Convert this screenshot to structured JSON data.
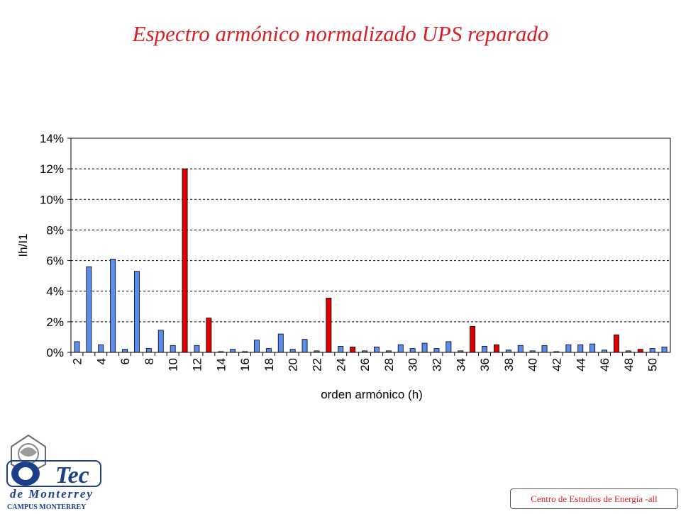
{
  "slide": {
    "title": "Espectro armónico normalizado UPS reparado",
    "footer": "Centro de Estudios de Energía -all"
  },
  "logo": {
    "main_text": "Tec",
    "sub_text": "de Monterrey",
    "campus_text": "CAMPUS MONTERREY"
  },
  "colors": {
    "title": "#d81f26",
    "bar_blue": "#5b8cf0",
    "bar_red": "#e00000",
    "logo_blue": "#1d3f8a"
  },
  "chart_data": {
    "type": "bar",
    "title": "",
    "xlabel": "orden armónico (h)",
    "ylabel": "Ih/I1",
    "ylim": [
      0,
      14
    ],
    "y_unit": "%",
    "yticks": [
      "0%",
      "2%",
      "4%",
      "6%",
      "8%",
      "10%",
      "12%",
      "14%"
    ],
    "grid": "horizontal dashed",
    "categories": [
      2,
      3,
      4,
      5,
      6,
      7,
      8,
      9,
      10,
      11,
      12,
      13,
      14,
      15,
      16,
      17,
      18,
      19,
      20,
      21,
      22,
      23,
      24,
      25,
      26,
      27,
      28,
      29,
      30,
      31,
      32,
      33,
      34,
      35,
      36,
      37,
      38,
      39,
      40,
      41,
      42,
      43,
      44,
      45,
      46,
      47,
      48,
      49,
      50,
      51
    ],
    "values": [
      0.7,
      5.6,
      0.5,
      6.1,
      0.2,
      5.3,
      0.25,
      1.45,
      0.45,
      12.0,
      0.45,
      2.25,
      0.05,
      0.2,
      0.05,
      0.8,
      0.25,
      1.2,
      0.2,
      0.85,
      0.1,
      3.55,
      0.4,
      0.35,
      0.1,
      0.35,
      0.1,
      0.5,
      0.25,
      0.6,
      0.25,
      0.7,
      0.1,
      1.7,
      0.4,
      0.5,
      0.15,
      0.45,
      0.1,
      0.45,
      0.05,
      0.5,
      0.5,
      0.55,
      0.15,
      1.15,
      0.1,
      0.2,
      0.25,
      0.35
    ],
    "highlighted": [
      11,
      13,
      23,
      25,
      35,
      37,
      47,
      49
    ]
  }
}
